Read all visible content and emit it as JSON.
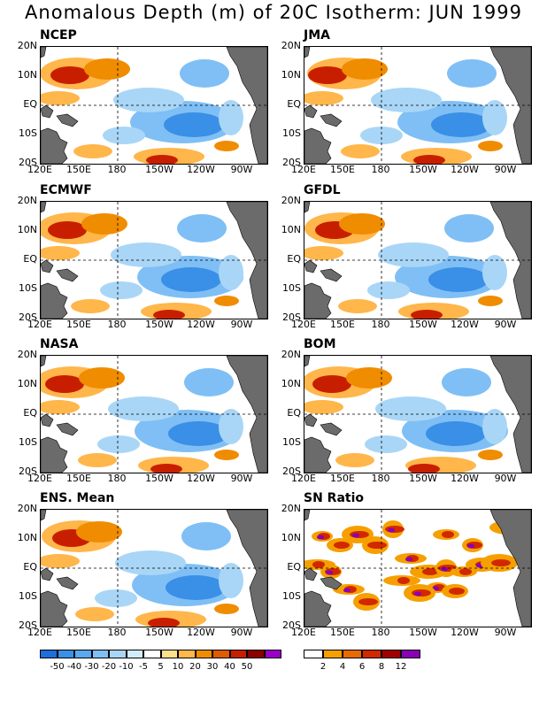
{
  "title": "Anomalous Depth (m) of 20C Isotherm: JUN 1999",
  "lat_labels": [
    "20N",
    "10N",
    "EQ",
    "10S",
    "20S"
  ],
  "lon_labels": [
    "120E",
    "150E",
    "180",
    "150W",
    "120W",
    "90W"
  ],
  "panels": [
    {
      "name": "NCEP",
      "kind": "anom"
    },
    {
      "name": "JMA",
      "kind": "anom"
    },
    {
      "name": "ECMWF",
      "kind": "anom"
    },
    {
      "name": "GFDL",
      "kind": "anom"
    },
    {
      "name": "NASA",
      "kind": "anom"
    },
    {
      "name": "BOM",
      "kind": "anom"
    },
    {
      "name": "ENS. Mean",
      "kind": "anom"
    },
    {
      "name": "SN Ratio",
      "kind": "sn"
    }
  ],
  "anomaly_legend": {
    "labels": [
      "-50",
      "-40",
      "-30",
      "-20",
      "-10",
      "-5",
      "5",
      "10",
      "20",
      "30",
      "40",
      "50"
    ],
    "colors": [
      "#1e6fd9",
      "#3a8fe6",
      "#5aa8f0",
      "#7fbff5",
      "#a9d6f7",
      "#d3ecfb",
      "#ffffff",
      "#ffe08a",
      "#ffb64a",
      "#f08c00",
      "#e05a00",
      "#c81e00",
      "#8c0000",
      "#9a00c8"
    ]
  },
  "sn_legend": {
    "labels": [
      "2",
      "4",
      "6",
      "8",
      "12"
    ],
    "colors": [
      "#ffffff",
      "#f5a000",
      "#e86a00",
      "#d22800",
      "#a00000",
      "#8a00b4"
    ]
  }
}
